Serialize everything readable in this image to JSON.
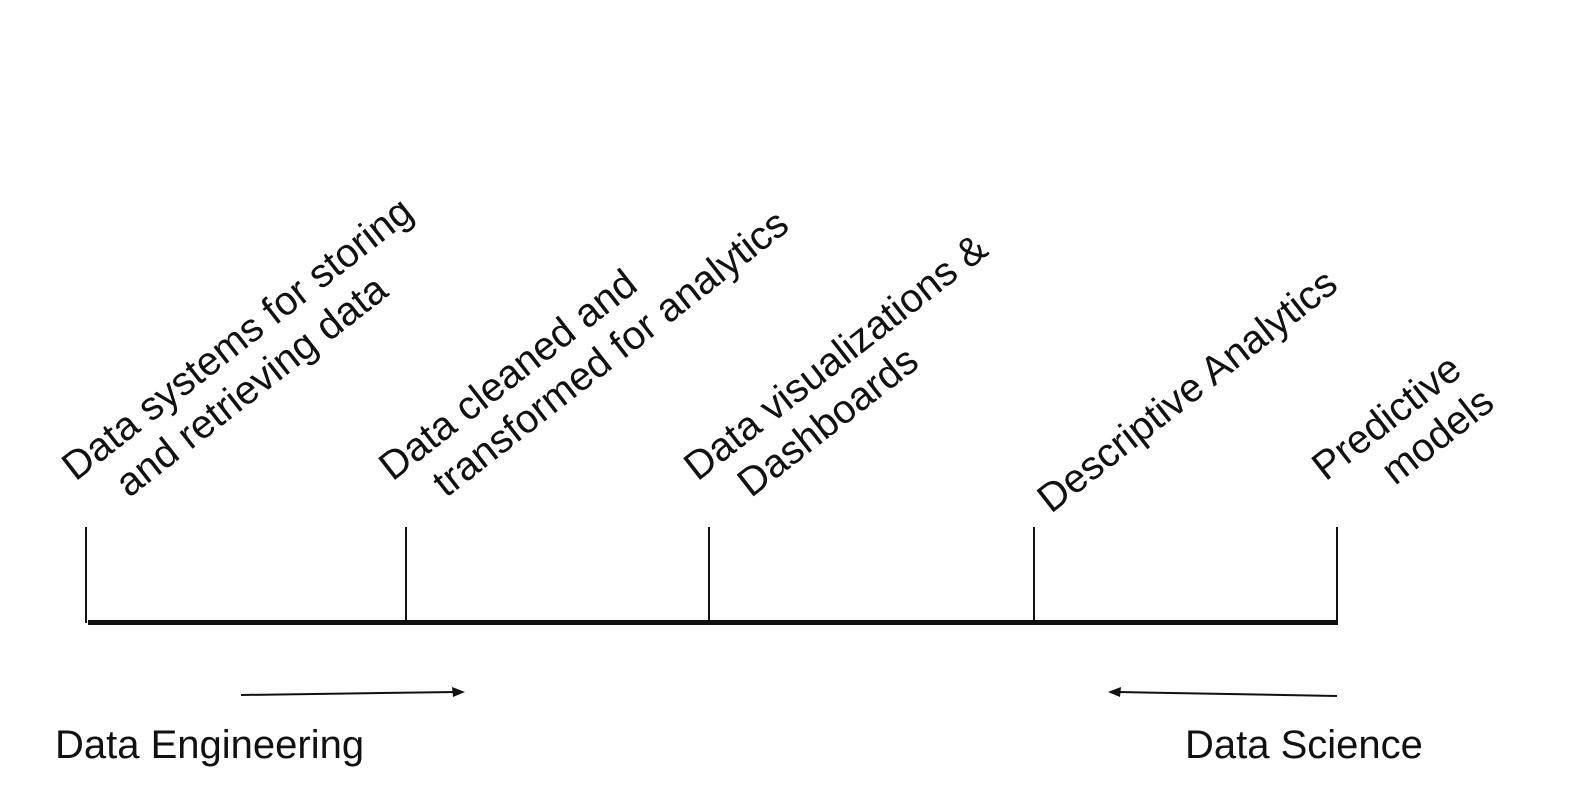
{
  "stages": [
    {
      "lines": [
        "Data systems for storing",
        "and retrieving data"
      ]
    },
    {
      "lines": [
        "Data cleaned and",
        "transformed for analytics"
      ]
    },
    {
      "lines": [
        "Data visualizations &",
        "Dashboards"
      ]
    },
    {
      "lines": [
        "Descriptive Analytics"
      ]
    },
    {
      "lines": [
        "Predictive",
        "models"
      ]
    }
  ],
  "roles": {
    "data_engineering": "Data Engineering",
    "data_science": "Data Science"
  },
  "colors": {
    "line": "#111111",
    "background": "#ffffff"
  }
}
